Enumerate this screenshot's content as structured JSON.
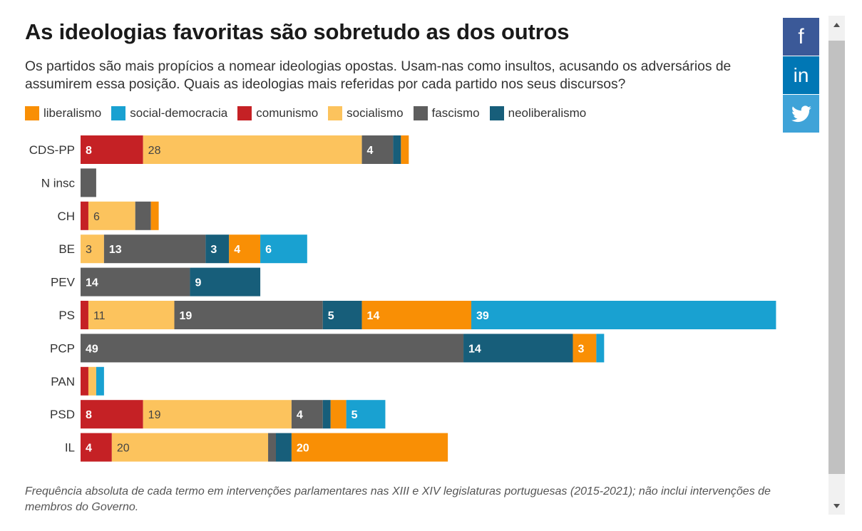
{
  "title": "As ideologias favoritas são sobretudo as dos outros",
  "subtitle": "Os partidos são mais propícios a nomear ideologias opostas. Usam-nas como insultos, acusando os adversários de assumirem essa posição. Quais as ideologias mais referidas por cada partido nos seus discursos?",
  "footnote": "Frequência absoluta de cada termo em intervenções parlamentares nas XIII e XIV legislaturas portuguesas (2015-2021); não inclui intervenções de membros do Governo.",
  "share": {
    "facebook": "f",
    "linkedin": "in",
    "twitter_icon": "twitter-bird-icon"
  },
  "chart_data": {
    "type": "bar",
    "orientation": "horizontal",
    "stacked": true,
    "legend_position": "top",
    "grid": false,
    "categories": [
      "CDS-PP",
      "N insc",
      "CH",
      "BE",
      "PEV",
      "PS",
      "PCP",
      "PAN",
      "PSD",
      "IL"
    ],
    "series": [
      {
        "name": "comunismo",
        "color": "#c52125",
        "values": [
          8,
          0,
          1,
          0,
          0,
          1,
          0,
          1,
          8,
          4
        ]
      },
      {
        "name": "socialismo",
        "color": "#fcc35d",
        "values": [
          28,
          0,
          6,
          3,
          0,
          11,
          0,
          1,
          19,
          20
        ]
      },
      {
        "name": "fascismo",
        "color": "#5e5e5e",
        "values": [
          4,
          2,
          2,
          13,
          14,
          19,
          49,
          0,
          4,
          1
        ]
      },
      {
        "name": "neoliberalismo",
        "color": "#175e7a",
        "values": [
          1,
          0,
          0,
          3,
          9,
          5,
          14,
          0,
          1,
          2
        ]
      },
      {
        "name": "liberalismo",
        "color": "#f98f05",
        "values": [
          1,
          0,
          1,
          4,
          0,
          14,
          3,
          0,
          2,
          20
        ]
      },
      {
        "name": "social-democracia",
        "color": "#19a1d1",
        "values": [
          0,
          0,
          0,
          6,
          0,
          39,
          1,
          1,
          5,
          0
        ]
      }
    ],
    "legend_order": [
      "liberalismo",
      "social-democracia",
      "comunismo",
      "socialismo",
      "fascismo",
      "neoliberalismo"
    ],
    "xlim": [
      0,
      89
    ]
  }
}
